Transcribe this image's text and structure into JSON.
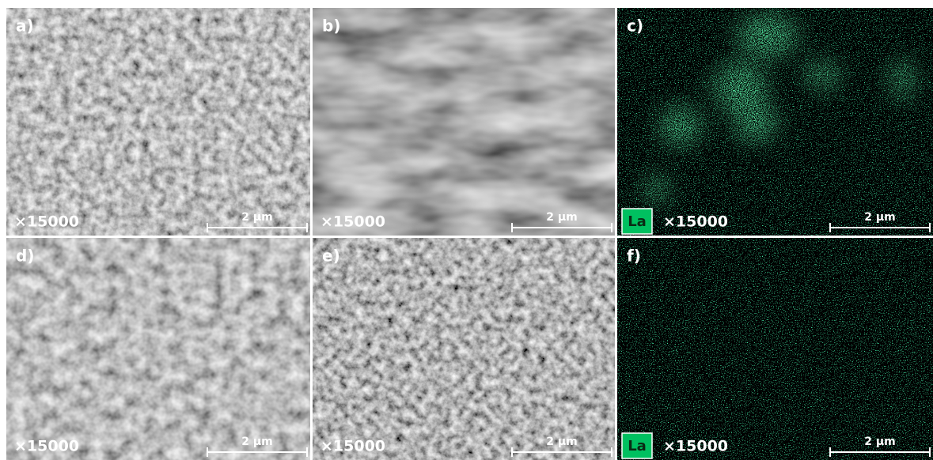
{
  "panels": [
    {
      "label": "a)",
      "magnification": "×15000",
      "scale_bar": "2 µm"
    },
    {
      "label": "b)",
      "magnification": "×15000",
      "scale_bar": "2 µm"
    },
    {
      "label": "c)",
      "element": "La",
      "magnification": "×15000",
      "scale_bar": "2 µm"
    },
    {
      "label": "d)",
      "magnification": "×15000",
      "scale_bar": "2 µm"
    },
    {
      "label": "e)",
      "magnification": "×15000",
      "scale_bar": "2 µm"
    },
    {
      "label": "f)",
      "element": "La",
      "magnification": "×15000",
      "scale_bar": "2 µm"
    }
  ]
}
